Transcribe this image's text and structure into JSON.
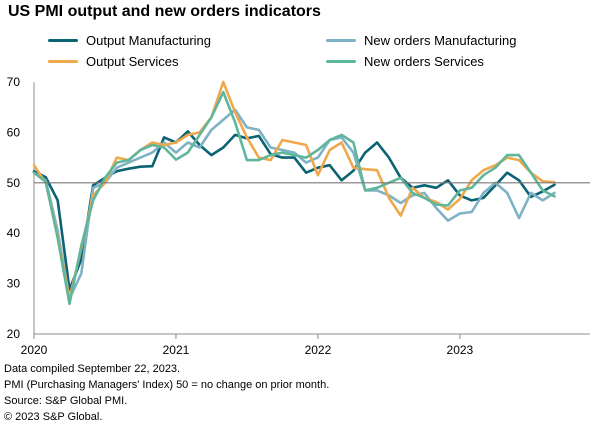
{
  "chart_data": {
    "type": "line",
    "title": "US PMI output and new orders indicators",
    "xlabel": "",
    "ylabel": "",
    "ylim": [
      20,
      70
    ],
    "y_ticks": [
      20,
      30,
      40,
      50,
      60,
      70
    ],
    "x_tick_labels": [
      "2020",
      "2021",
      "2022",
      "2023"
    ],
    "grid": false,
    "reference_line": 50,
    "legend_position": "top",
    "x": [
      "2020-01",
      "2020-02",
      "2020-03",
      "2020-04",
      "2020-05",
      "2020-06",
      "2020-07",
      "2020-08",
      "2020-09",
      "2020-10",
      "2020-11",
      "2020-12",
      "2021-01",
      "2021-02",
      "2021-03",
      "2021-04",
      "2021-05",
      "2021-06",
      "2021-07",
      "2021-08",
      "2021-09",
      "2021-10",
      "2021-11",
      "2021-12",
      "2022-01",
      "2022-02",
      "2022-03",
      "2022-04",
      "2022-05",
      "2022-06",
      "2022-07",
      "2022-08",
      "2022-09",
      "2022-10",
      "2022-11",
      "2022-12",
      "2023-01",
      "2023-02",
      "2023-03",
      "2023-04",
      "2023-05",
      "2023-06",
      "2023-07",
      "2023-08",
      "2023-09"
    ],
    "series": [
      {
        "name": "Output Manufacturing",
        "color": "#0b6374",
        "values": [
          52.3,
          51.1,
          46.5,
          28.8,
          34.8,
          49.5,
          51.0,
          52.3,
          52.8,
          53.2,
          53.3,
          59.0,
          58.0,
          60.2,
          57.5,
          55.5,
          57.0,
          59.5,
          58.8,
          59.3,
          55.7,
          55.0,
          55.0,
          52.0,
          53.0,
          53.5,
          50.5,
          52.4,
          56.0,
          58.0,
          55.0,
          51.0,
          49.0,
          49.5,
          49.0,
          50.5,
          47.5,
          46.5,
          47.0,
          49.5,
          52.0,
          50.5,
          47.2,
          48.3,
          49.6
        ]
      },
      {
        "name": "New orders Manufacturing",
        "color": "#7fb2c5",
        "values": [
          52.0,
          50.5,
          40.5,
          27.0,
          32.0,
          49.0,
          50.0,
          53.0,
          54.0,
          55.0,
          56.0,
          58.0,
          56.0,
          58.0,
          57.0,
          60.5,
          62.5,
          64.5,
          61.0,
          60.5,
          57.0,
          56.5,
          56.0,
          54.0,
          55.0,
          58.5,
          59.0,
          56.0,
          48.5,
          48.5,
          47.5,
          46.0,
          47.5,
          48.0,
          45.0,
          42.5,
          43.9,
          44.2,
          48.0,
          50.0,
          48.0,
          43.0,
          48.0,
          46.5,
          48.0
        ]
      },
      {
        "name": "Output Services",
        "color": "#f0a84c",
        "values": [
          53.5,
          50.0,
          39.5,
          27.0,
          37.0,
          47.5,
          50.0,
          55.0,
          54.5,
          56.5,
          58.0,
          57.5,
          58.0,
          59.5,
          60.0,
          63.0,
          70.0,
          64.0,
          59.0,
          55.0,
          54.5,
          58.5,
          58.0,
          57.5,
          51.5,
          56.5,
          58.0,
          53.0,
          52.7,
          52.5,
          47.0,
          43.5,
          49.0,
          47.0,
          46.2,
          44.7,
          46.8,
          50.5,
          52.5,
          53.5,
          55.0,
          54.5,
          52.0,
          50.3,
          50.1
        ]
      },
      {
        "name": "New orders Services",
        "color": "#5fb69c",
        "values": [
          52.0,
          50.2,
          39.0,
          26.0,
          37.5,
          46.5,
          51.0,
          54.0,
          54.5,
          56.5,
          57.5,
          57.0,
          54.6,
          56.0,
          59.5,
          63.0,
          68.0,
          62.0,
          54.5,
          54.5,
          55.5,
          56.0,
          55.5,
          55.0,
          56.5,
          58.5,
          59.5,
          58.0,
          48.5,
          49.0,
          50.0,
          51.0,
          48.0,
          47.0,
          45.7,
          45.5,
          48.5,
          49.0,
          51.5,
          53.0,
          55.5,
          55.5,
          52.0,
          48.5,
          47.3
        ]
      }
    ]
  },
  "notes": [
    "Data compiled September 22, 2023.",
    "PMI (Purchasing Managers' Index) 50 =  no change on prior month.",
    "Source: S&P Global PMI.",
    "© 2023 S&P Global."
  ]
}
